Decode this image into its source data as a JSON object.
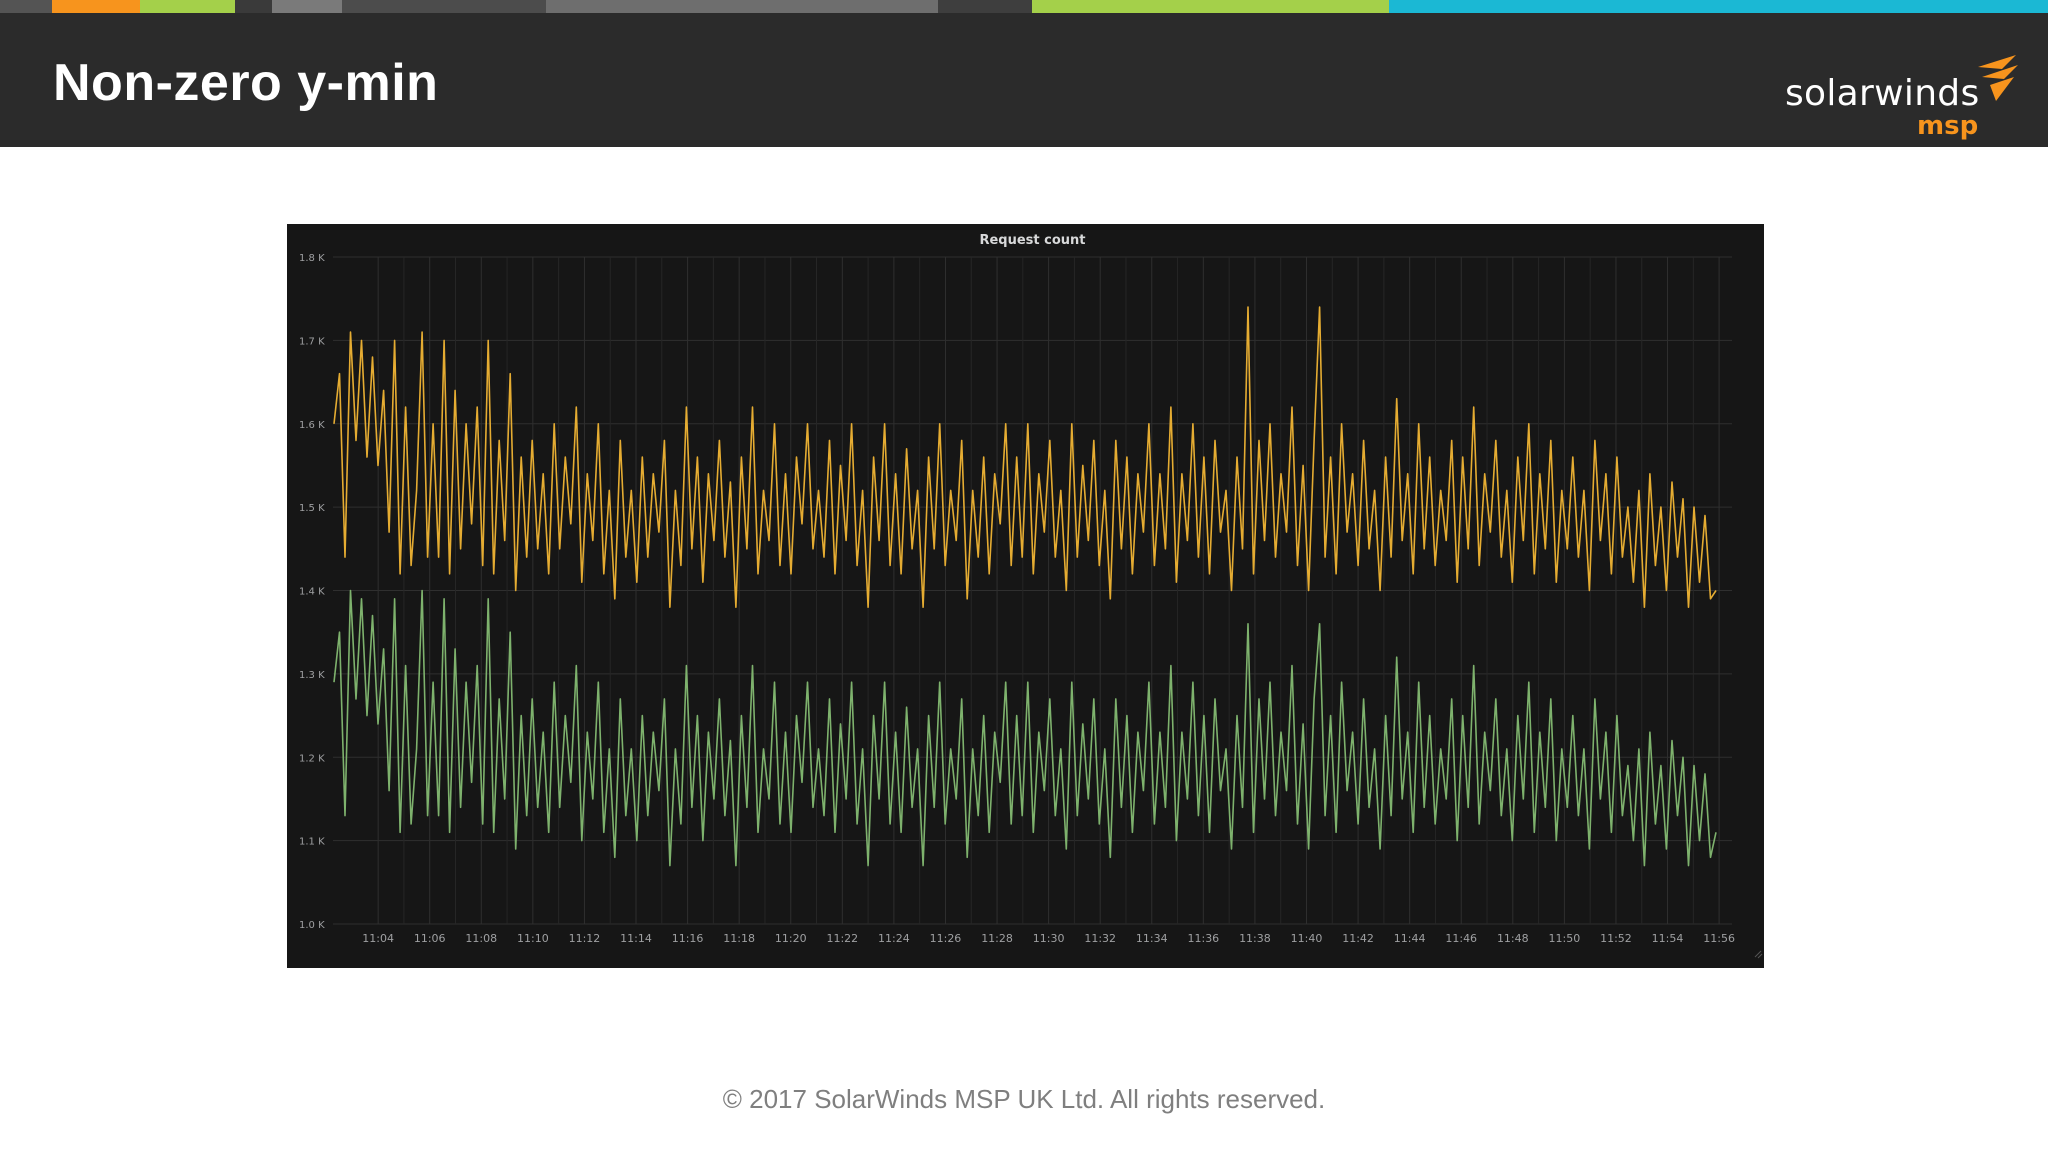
{
  "slide": {
    "title": "Non-zero y-min",
    "footer": "© 2017 SolarWinds MSP UK Ltd.  All rights reserved.",
    "colors": {
      "header_bg": "#2b2b2b",
      "topbar": [
        "#545454",
        "#f7941d",
        "#a4d04a",
        "#3a3a3a",
        "#7a7a7a",
        "#4c4c4c",
        "#6e6e6e",
        "#3e3e3e",
        "#a4d04a",
        "#1bb8d4"
      ]
    }
  },
  "logo": {
    "word": "solarwinds",
    "sub": "msp",
    "icon": "solarwinds-flame-icon"
  },
  "chart_data": {
    "type": "line",
    "title": "Request count",
    "xlabel": "",
    "ylabel": "",
    "ylim": [
      1000,
      1800
    ],
    "y_ticks": [
      "1.0 K",
      "1.1 K",
      "1.2 K",
      "1.3 K",
      "1.4 K",
      "1.5 K",
      "1.6 K",
      "1.7 K",
      "1.8 K"
    ],
    "x_ticks": [
      "11:04",
      "11:06",
      "11:08",
      "11:10",
      "11:12",
      "11:14",
      "11:16",
      "11:18",
      "11:20",
      "11:22",
      "11:24",
      "11:26",
      "11:28",
      "11:30",
      "11:32",
      "11:34",
      "11:36",
      "11:38",
      "11:40",
      "11:42",
      "11:44",
      "11:46",
      "11:48",
      "11:50",
      "11:52",
      "11:54",
      "11:56"
    ],
    "x_start": "11:02:15",
    "x_end": "11:56:30",
    "grid": true,
    "legend": "none",
    "series": [
      {
        "color": "#e5ac32",
        "values": [
          1600,
          1660,
          1440,
          1710,
          1580,
          1700,
          1560,
          1680,
          1550,
          1640,
          1470,
          1700,
          1420,
          1620,
          1430,
          1520,
          1710,
          1440,
          1600,
          1440,
          1700,
          1420,
          1640,
          1450,
          1600,
          1480,
          1620,
          1430,
          1700,
          1420,
          1580,
          1460,
          1660,
          1400,
          1560,
          1440,
          1580,
          1450,
          1540,
          1420,
          1600,
          1450,
          1560,
          1480,
          1620,
          1410,
          1540,
          1460,
          1600,
          1420,
          1520,
          1390,
          1580,
          1440,
          1520,
          1410,
          1560,
          1440,
          1540,
          1470,
          1580,
          1380,
          1520,
          1430,
          1620,
          1450,
          1560,
          1410,
          1540,
          1460,
          1580,
          1440,
          1530,
          1380,
          1560,
          1450,
          1620,
          1420,
          1520,
          1460,
          1600,
          1430,
          1540,
          1420,
          1560,
          1480,
          1600,
          1450,
          1520,
          1440,
          1580,
          1420,
          1550,
          1460,
          1600,
          1430,
          1520,
          1380,
          1560,
          1460,
          1600,
          1430,
          1540,
          1420,
          1570,
          1450,
          1520,
          1380,
          1560,
          1450,
          1600,
          1430,
          1520,
          1460,
          1580,
          1390,
          1520,
          1440,
          1560,
          1420,
          1540,
          1480,
          1600,
          1430,
          1560,
          1440,
          1600,
          1420,
          1540,
          1470,
          1580,
          1440,
          1520,
          1400,
          1600,
          1440,
          1550,
          1460,
          1580,
          1430,
          1520,
          1390,
          1580,
          1450,
          1560,
          1420,
          1540,
          1470,
          1600,
          1430,
          1540,
          1450,
          1620,
          1410,
          1540,
          1460,
          1600,
          1440,
          1560,
          1420,
          1580,
          1470,
          1520,
          1400,
          1560,
          1450,
          1740,
          1420,
          1580,
          1460,
          1600,
          1440,
          1540,
          1470,
          1620,
          1430,
          1550,
          1400,
          1580,
          1740,
          1440,
          1560,
          1420,
          1600,
          1470,
          1540,
          1430,
          1580,
          1450,
          1520,
          1400,
          1560,
          1440,
          1630,
          1460,
          1540,
          1420,
          1600,
          1450,
          1560,
          1430,
          1520,
          1460,
          1580,
          1410,
          1560,
          1450,
          1620,
          1430,
          1540,
          1470,
          1580,
          1440,
          1520,
          1410,
          1560,
          1460,
          1600,
          1420,
          1540,
          1450,
          1580,
          1410,
          1520,
          1450,
          1560,
          1440,
          1520,
          1400,
          1580,
          1460,
          1540,
          1420,
          1560,
          1440,
          1500,
          1410,
          1520,
          1380,
          1540,
          1430,
          1500,
          1400,
          1530,
          1440,
          1510,
          1380,
          1500,
          1410,
          1490,
          1390,
          1400
        ]
      },
      {
        "color": "#7eb26d",
        "values": [
          1290,
          1350,
          1130,
          1400,
          1270,
          1390,
          1250,
          1370,
          1240,
          1330,
          1160,
          1390,
          1110,
          1310,
          1120,
          1210,
          1400,
          1130,
          1290,
          1130,
          1390,
          1110,
          1330,
          1140,
          1290,
          1170,
          1310,
          1120,
          1390,
          1110,
          1270,
          1150,
          1350,
          1090,
          1250,
          1130,
          1270,
          1140,
          1230,
          1110,
          1290,
          1140,
          1250,
          1170,
          1310,
          1100,
          1230,
          1150,
          1290,
          1110,
          1210,
          1080,
          1270,
          1130,
          1210,
          1100,
          1250,
          1130,
          1230,
          1160,
          1270,
          1070,
          1210,
          1120,
          1310,
          1140,
          1250,
          1100,
          1230,
          1150,
          1270,
          1130,
          1220,
          1070,
          1250,
          1140,
          1310,
          1110,
          1210,
          1150,
          1290,
          1120,
          1230,
          1110,
          1250,
          1170,
          1290,
          1140,
          1210,
          1130,
          1270,
          1110,
          1240,
          1150,
          1290,
          1120,
          1210,
          1070,
          1250,
          1150,
          1290,
          1120,
          1230,
          1110,
          1260,
          1140,
          1210,
          1070,
          1250,
          1140,
          1290,
          1120,
          1210,
          1150,
          1270,
          1080,
          1210,
          1130,
          1250,
          1110,
          1230,
          1170,
          1290,
          1120,
          1250,
          1130,
          1290,
          1110,
          1230,
          1160,
          1270,
          1130,
          1210,
          1090,
          1290,
          1130,
          1240,
          1150,
          1270,
          1120,
          1210,
          1080,
          1270,
          1140,
          1250,
          1110,
          1230,
          1160,
          1290,
          1120,
          1230,
          1140,
          1310,
          1100,
          1230,
          1150,
          1290,
          1130,
          1250,
          1110,
          1270,
          1160,
          1210,
          1090,
          1250,
          1140,
          1360,
          1110,
          1270,
          1150,
          1290,
          1130,
          1230,
          1160,
          1310,
          1120,
          1240,
          1090,
          1270,
          1360,
          1130,
          1250,
          1110,
          1290,
          1160,
          1230,
          1120,
          1270,
          1140,
          1210,
          1090,
          1250,
          1130,
          1320,
          1150,
          1230,
          1110,
          1290,
          1140,
          1250,
          1120,
          1210,
          1150,
          1270,
          1100,
          1250,
          1140,
          1310,
          1120,
          1230,
          1160,
          1270,
          1130,
          1210,
          1100,
          1250,
          1150,
          1290,
          1110,
          1230,
          1140,
          1270,
          1100,
          1210,
          1140,
          1250,
          1130,
          1210,
          1090,
          1270,
          1150,
          1230,
          1110,
          1250,
          1130,
          1190,
          1100,
          1210,
          1070,
          1230,
          1120,
          1190,
          1090,
          1220,
          1130,
          1200,
          1070,
          1190,
          1100,
          1180,
          1080,
          1110
        ]
      }
    ]
  }
}
